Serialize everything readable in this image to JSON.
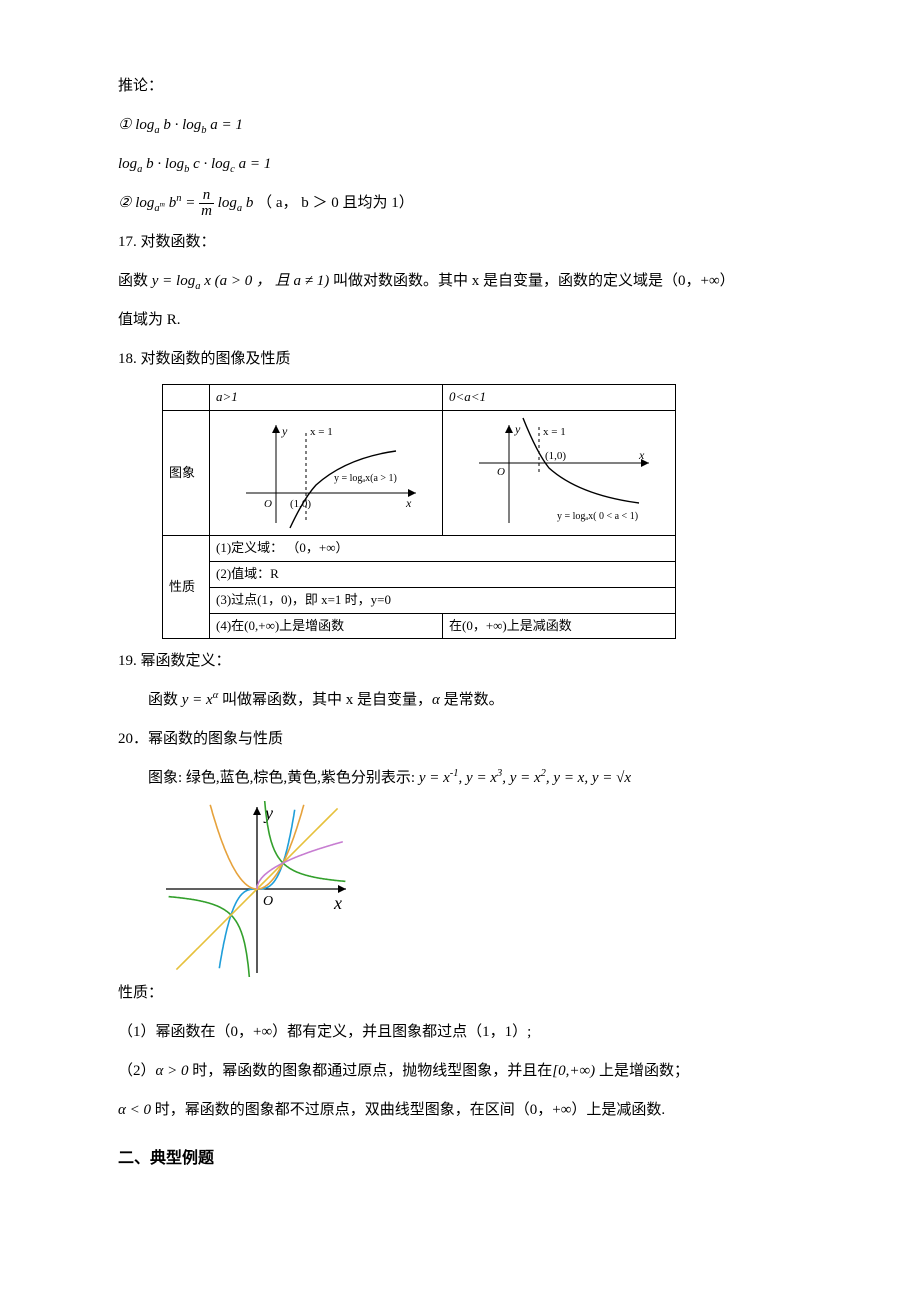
{
  "p1": "推论：",
  "p2_html": "① log<sub>a</sub> b · log<sub>b</sub> a = 1",
  "p3_html": "log<sub>a</sub> b · log<sub>b</sub> c · log<sub>c</sub> a = 1",
  "p4_left": "② log",
  "p4_sub1": "a<sup>m</sup>",
  "p4_mid1": " b<sup>n</sup> = ",
  "p4_frac_num": "n",
  "p4_frac_den": "m",
  "p4_mid2": " log<sub>a</sub> b ",
  "p4_tail": "（ a， b ＞ 0 且均为 1）",
  "h17": "17. 对数函数：",
  "p5_a": "函数 ",
  "p5_b_html": "y = log<sub>a</sub> x (a > 0 ， 且 a ≠ 1)",
  "p5_c": " 叫做对数函数。其中 x 是自变量，函数的定义域是（0，+∞）",
  "p6": "值域为 R.",
  "h18": "18. 对数函数的图像及性质",
  "logtable": {
    "row_header_labels": [
      "图象",
      "性质"
    ],
    "col_a": "a>1",
    "col_b": "0<a<1",
    "graph_a": {
      "x_asymptote_label": "x = 1",
      "curve_label": "y = log<sub>a</sub>x(a > 1)",
      "y_label": "y",
      "x_label": "x",
      "origin_label": "O",
      "point_label": "(1,0)",
      "curve_color": "#000000"
    },
    "graph_b": {
      "x_asymptote_label": "x = 1",
      "curve_label": "y = log<sub>a</sub>x( 0 < a < 1)",
      "y_label": "y",
      "x_label": "x",
      "origin_label": "O",
      "point_label": "(1,0)",
      "curve_color": "#000000"
    },
    "prop1": "(1)定义域： （0，+∞）",
    "prop2": "(2)值域：R",
    "prop3": "(3)过点(1，0)，即 x=1 时，y=0",
    "prop4a": "(4)在(0,+∞)上是增函数",
    "prop4b": "在(0，+∞)上是减函数"
  },
  "h19": "19. 幂函数定义：",
  "p7_a": "函数 ",
  "p7_b_html": "y = x<sup>α</sup>",
  "p7_c": " 叫做幂函数，其中 x 是自变量，",
  "p7_d_html": "α",
  "p7_e": " 是常数。",
  "h20": "20．幂函数的图象与性质",
  "p8_a": "图象:   绿色,蓝色,棕色,黄色,紫色分别表示: ",
  "p8_b_html": "y = x<sup>-1</sup>, y = x<sup>3</sup>, y = x<sup>2</sup>, y = x, y = √x",
  "powergraph": {
    "width": 190,
    "height": 176,
    "origin_label": "O",
    "x_label": "x",
    "y_label": "y",
    "colors": {
      "axis": "#000000",
      "green": "#33a02c",
      "blue": "#1f9ed9",
      "brown": "#e6a23c",
      "yellow": "#e6c13c",
      "purple": "#c77dd1"
    },
    "axis_fontsize": 18
  },
  "hprops": "性质：",
  "prop_p1": "（1）幂函数在（0，+∞）都有定义，并且图象都过点（1，1）;",
  "prop_p2_a": "（2）",
  "prop_p2_b_html": "α > 0",
  "prop_p2_c": " 时，幂函数的图象都通过原点，抛物线型图象，并且在",
  "prop_p2_d_html": "[0,+∞)",
  "prop_p2_e": " 上是增函数；",
  "prop_p3_a_html": "α < 0",
  "prop_p3_b": " 时，幂函数的图象都不过原点，双曲线型图象，在区间（0，+∞）上是减函数.",
  "section2": "二、典型例题"
}
